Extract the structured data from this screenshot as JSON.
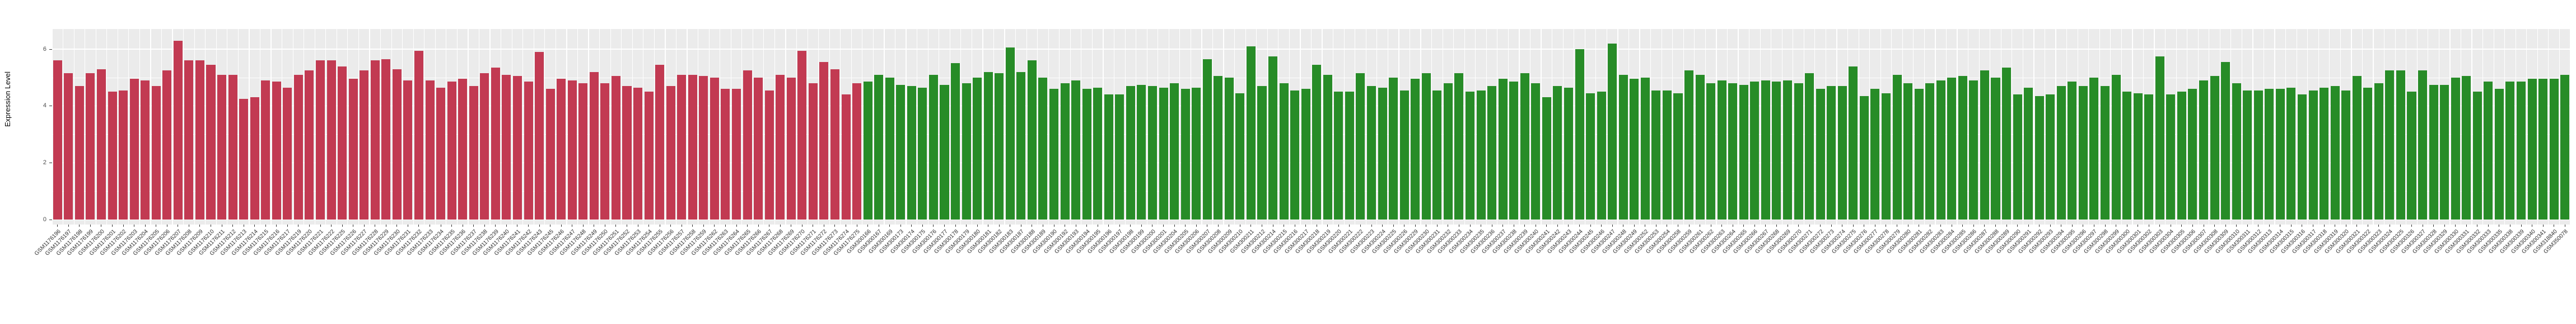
{
  "chart_data": {
    "type": "bar",
    "title": "",
    "xlabel": "",
    "ylabel": "Expression Level",
    "yticks": [
      0,
      2,
      4,
      6
    ],
    "yminorticks": [
      1,
      3,
      5
    ],
    "ylim": [
      0,
      6.7
    ],
    "grid": "on",
    "legend": "none",
    "panel_background": "#EBEBEB",
    "gridline_color": "#FFFFFF",
    "tick_color": "#333333",
    "group1_count": 74,
    "group1_color": "#C23A52",
    "group2_color": "#278C27",
    "categories": [
      "GSM1176196",
      "GSM1176197",
      "GSM1176198",
      "GSM1176199",
      "GSM1176200",
      "GSM1176201",
      "GSM1176202",
      "GSM1176203",
      "GSM1176204",
      "GSM1176205",
      "GSM1176206",
      "GSM1176207",
      "GSM1176208",
      "GSM1176209",
      "GSM1176210",
      "GSM1176211",
      "GSM1176212",
      "GSM1176213",
      "GSM1176214",
      "GSM1176215",
      "GSM1176216",
      "GSM1176217",
      "GSM1176219",
      "GSM1176220",
      "GSM1176221",
      "GSM1176222",
      "GSM1176225",
      "GSM1176226",
      "GSM1176227",
      "GSM1176228",
      "GSM1176229",
      "GSM1176230",
      "GSM1176231",
      "GSM1176232",
      "GSM1176233",
      "GSM1176234",
      "GSM1176235",
      "GSM1176236",
      "GSM1176237",
      "GSM1176238",
      "GSM1176239",
      "GSM1176240",
      "GSM1176241",
      "GSM1176242",
      "GSM1176243",
      "GSM1176245",
      "GSM1176246",
      "GSM1176247",
      "GSM1176248",
      "GSM1176249",
      "GSM1176250",
      "GSM1176251",
      "GSM1176252",
      "GSM1176253",
      "GSM1176254",
      "GSM1176255",
      "GSM1176256",
      "GSM1176257",
      "GSM1176258",
      "GSM1176259",
      "GSM1176262",
      "GSM1176263",
      "GSM1176264",
      "GSM1176265",
      "GSM1176266",
      "GSM1176267",
      "GSM1176268",
      "GSM1176269",
      "GSM1176270",
      "GSM1176271",
      "GSM1176272",
      "GSM1176273",
      "GSM1176274",
      "GSM1176275",
      "GSM300166",
      "GSM300167",
      "GSM300169",
      "GSM300173",
      "GSM300174",
      "GSM300175",
      "GSM300176",
      "GSM300177",
      "GSM300178",
      "GSM300179",
      "GSM300180",
      "GSM300181",
      "GSM300182",
      "GSM300183",
      "GSM300187",
      "GSM300188",
      "GSM300189",
      "GSM300190",
      "GSM300192",
      "GSM300193",
      "GSM300194",
      "GSM300195",
      "GSM300196",
      "GSM300197",
      "GSM300198",
      "GSM300199",
      "GSM300200",
      "GSM300201",
      "GSM300204",
      "GSM300205",
      "GSM300206",
      "GSM300207",
      "GSM300208",
      "GSM300209",
      "GSM300210",
      "GSM300211",
      "GSM300212",
      "GSM300214",
      "GSM300215",
      "GSM300216",
      "GSM300217",
      "GSM300218",
      "GSM300219",
      "GSM300220",
      "GSM300221",
      "GSM300222",
      "GSM300223",
      "GSM300224",
      "GSM300225",
      "GSM300226",
      "GSM300229",
      "GSM300230",
      "GSM300231",
      "GSM300232",
      "GSM300233",
      "GSM300234",
      "GSM300235",
      "GSM300236",
      "GSM300237",
      "GSM300238",
      "GSM300239",
      "GSM300240",
      "GSM300241",
      "GSM300242",
      "GSM300243",
      "GSM300244",
      "GSM300245",
      "GSM300246",
      "GSM300247",
      "GSM300248",
      "GSM300249",
      "GSM300252",
      "GSM300253",
      "GSM300254",
      "GSM300258",
      "GSM300259",
      "GSM300261",
      "GSM300262",
      "GSM300263",
      "GSM300264",
      "GSM300265",
      "GSM300266",
      "GSM300267",
      "GSM300268",
      "GSM300269",
      "GSM300270",
      "GSM300271",
      "GSM300272",
      "GSM300273",
      "GSM300274",
      "GSM300275",
      "GSM300276",
      "GSM300277",
      "GSM300278",
      "GSM300279",
      "GSM300280",
      "GSM300281",
      "GSM300282",
      "GSM300283",
      "GSM300284",
      "GSM300285",
      "GSM300286",
      "GSM300287",
      "GSM300288",
      "GSM300289",
      "GSM300290",
      "GSM300291",
      "GSM300292",
      "GSM300293",
      "GSM300294",
      "GSM300295",
      "GSM300296",
      "GSM300297",
      "GSM300298",
      "GSM300299",
      "GSM300300",
      "GSM300301",
      "GSM300302",
      "GSM300303",
      "GSM300304",
      "GSM300305",
      "GSM300306",
      "GSM300307",
      "GSM300308",
      "GSM300309",
      "GSM300310",
      "GSM300311",
      "GSM300312",
      "GSM300313",
      "GSM300314",
      "GSM300315",
      "GSM300316",
      "GSM300317",
      "GSM300318",
      "GSM300319",
      "GSM300320",
      "GSM300321",
      "GSM300322",
      "GSM300323",
      "GSM300324",
      "GSM300325",
      "GSM300326",
      "GSM300327",
      "GSM300328",
      "GSM300329",
      "GSM300330",
      "GSM300331",
      "GSM300332",
      "GSM300333",
      "GSM300335",
      "GSM300338",
      "GSM300339",
      "GSM300340",
      "GSM300341",
      "GSM318840",
      "GSM350078"
    ],
    "values": [
      5.6,
      5.15,
      4.7,
      5.15,
      5.3,
      4.5,
      4.55,
      4.95,
      4.9,
      4.7,
      5.25,
      6.3,
      5.6,
      5.6,
      5.45,
      5.1,
      5.1,
      4.25,
      4.3,
      4.9,
      4.85,
      4.65,
      5.1,
      5.25,
      5.6,
      5.6,
      5.4,
      4.95,
      5.25,
      5.6,
      5.65,
      5.3,
      4.9,
      5.95,
      4.9,
      4.65,
      4.85,
      4.95,
      4.7,
      5.15,
      5.35,
      5.1,
      5.05,
      4.85,
      5.9,
      4.6,
      4.95,
      4.9,
      4.8,
      5.2,
      4.8,
      5.05,
      4.7,
      4.65,
      4.5,
      5.45,
      4.7,
      5.1,
      5.1,
      5.05,
      5.0,
      4.6,
      4.6,
      5.25,
      5.0,
      4.55,
      5.1,
      5.0,
      5.95,
      4.8,
      5.55,
      5.3,
      4.4,
      4.8,
      4.85,
      5.1,
      5.0,
      4.75,
      4.7,
      4.65,
      5.1,
      4.75,
      5.5,
      4.8,
      5.0,
      5.2,
      5.15,
      6.05,
      5.2,
      5.6,
      5.0,
      4.6,
      4.8,
      4.9,
      4.6,
      4.65,
      4.4,
      4.4,
      4.7,
      4.75,
      4.7,
      4.65,
      4.8,
      4.6,
      4.65,
      5.65,
      5.05,
      5.0,
      4.45,
      6.1,
      4.7,
      5.75,
      4.8,
      4.55,
      4.6,
      5.45,
      5.1,
      4.5,
      4.5,
      5.15,
      4.7,
      4.65,
      5.0,
      4.55,
      4.95,
      5.15,
      4.55,
      4.8,
      5.15,
      4.5,
      4.55,
      4.7,
      4.95,
      4.85,
      5.15,
      4.8,
      4.3,
      4.7,
      4.65,
      6.0,
      4.45,
      4.5,
      6.2,
      5.1,
      4.95,
      5.0,
      4.55,
      4.55,
      4.45,
      5.25,
      5.1,
      4.8,
      4.9,
      4.8,
      4.75,
      4.85,
      4.9,
      4.85,
      4.9,
      4.8,
      5.15,
      4.6,
      4.7,
      4.7,
      5.4,
      4.35,
      4.6,
      4.45,
      5.1,
      4.8,
      4.6,
      4.8,
      4.9,
      5.0,
      5.05,
      4.9,
      5.25,
      5.0,
      5.35,
      4.4,
      4.65,
      4.35,
      4.4,
      4.7,
      4.85,
      4.7,
      5.0,
      4.7,
      5.1,
      4.5,
      4.45,
      4.4,
      5.75,
      4.4,
      4.5,
      4.6,
      4.9,
      5.05,
      5.55,
      4.8,
      4.55,
      4.55,
      4.6,
      4.6,
      4.65,
      4.4,
      4.55,
      4.65,
      4.7,
      4.55,
      5.05,
      4.65,
      4.8,
      5.25,
      5.25,
      4.5,
      5.25,
      4.75,
      4.75,
      5.0,
      5.05,
      4.5,
      4.85,
      4.6,
      4.85,
      4.85,
      4.95,
      4.95,
      4.95,
      5.1
    ]
  }
}
